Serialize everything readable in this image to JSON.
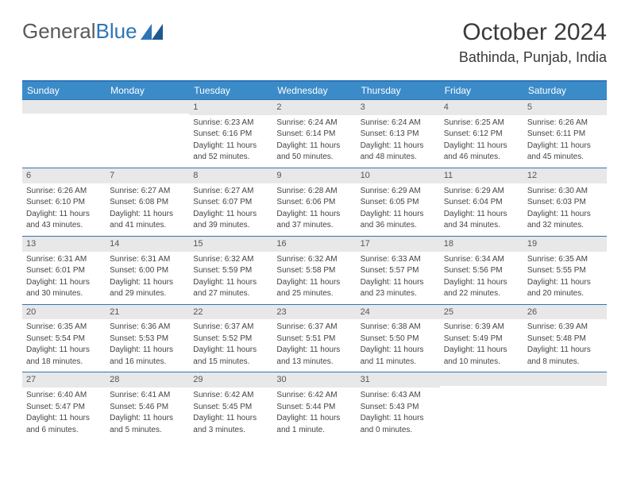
{
  "logo": {
    "text1": "General",
    "text2": "Blue"
  },
  "title": "October 2024",
  "location": "Bathinda, Punjab, India",
  "colors": {
    "header_bg": "#3b8bc9",
    "border": "#2e75b6",
    "daynum_bg": "#e8e8e8",
    "text": "#444444"
  },
  "day_names": [
    "Sunday",
    "Monday",
    "Tuesday",
    "Wednesday",
    "Thursday",
    "Friday",
    "Saturday"
  ],
  "weeks": [
    [
      null,
      null,
      {
        "n": "1",
        "sr": "Sunrise: 6:23 AM",
        "ss": "Sunset: 6:16 PM",
        "dl1": "Daylight: 11 hours",
        "dl2": "and 52 minutes."
      },
      {
        "n": "2",
        "sr": "Sunrise: 6:24 AM",
        "ss": "Sunset: 6:14 PM",
        "dl1": "Daylight: 11 hours",
        "dl2": "and 50 minutes."
      },
      {
        "n": "3",
        "sr": "Sunrise: 6:24 AM",
        "ss": "Sunset: 6:13 PM",
        "dl1": "Daylight: 11 hours",
        "dl2": "and 48 minutes."
      },
      {
        "n": "4",
        "sr": "Sunrise: 6:25 AM",
        "ss": "Sunset: 6:12 PM",
        "dl1": "Daylight: 11 hours",
        "dl2": "and 46 minutes."
      },
      {
        "n": "5",
        "sr": "Sunrise: 6:26 AM",
        "ss": "Sunset: 6:11 PM",
        "dl1": "Daylight: 11 hours",
        "dl2": "and 45 minutes."
      }
    ],
    [
      {
        "n": "6",
        "sr": "Sunrise: 6:26 AM",
        "ss": "Sunset: 6:10 PM",
        "dl1": "Daylight: 11 hours",
        "dl2": "and 43 minutes."
      },
      {
        "n": "7",
        "sr": "Sunrise: 6:27 AM",
        "ss": "Sunset: 6:08 PM",
        "dl1": "Daylight: 11 hours",
        "dl2": "and 41 minutes."
      },
      {
        "n": "8",
        "sr": "Sunrise: 6:27 AM",
        "ss": "Sunset: 6:07 PM",
        "dl1": "Daylight: 11 hours",
        "dl2": "and 39 minutes."
      },
      {
        "n": "9",
        "sr": "Sunrise: 6:28 AM",
        "ss": "Sunset: 6:06 PM",
        "dl1": "Daylight: 11 hours",
        "dl2": "and 37 minutes."
      },
      {
        "n": "10",
        "sr": "Sunrise: 6:29 AM",
        "ss": "Sunset: 6:05 PM",
        "dl1": "Daylight: 11 hours",
        "dl2": "and 36 minutes."
      },
      {
        "n": "11",
        "sr": "Sunrise: 6:29 AM",
        "ss": "Sunset: 6:04 PM",
        "dl1": "Daylight: 11 hours",
        "dl2": "and 34 minutes."
      },
      {
        "n": "12",
        "sr": "Sunrise: 6:30 AM",
        "ss": "Sunset: 6:03 PM",
        "dl1": "Daylight: 11 hours",
        "dl2": "and 32 minutes."
      }
    ],
    [
      {
        "n": "13",
        "sr": "Sunrise: 6:31 AM",
        "ss": "Sunset: 6:01 PM",
        "dl1": "Daylight: 11 hours",
        "dl2": "and 30 minutes."
      },
      {
        "n": "14",
        "sr": "Sunrise: 6:31 AM",
        "ss": "Sunset: 6:00 PM",
        "dl1": "Daylight: 11 hours",
        "dl2": "and 29 minutes."
      },
      {
        "n": "15",
        "sr": "Sunrise: 6:32 AM",
        "ss": "Sunset: 5:59 PM",
        "dl1": "Daylight: 11 hours",
        "dl2": "and 27 minutes."
      },
      {
        "n": "16",
        "sr": "Sunrise: 6:32 AM",
        "ss": "Sunset: 5:58 PM",
        "dl1": "Daylight: 11 hours",
        "dl2": "and 25 minutes."
      },
      {
        "n": "17",
        "sr": "Sunrise: 6:33 AM",
        "ss": "Sunset: 5:57 PM",
        "dl1": "Daylight: 11 hours",
        "dl2": "and 23 minutes."
      },
      {
        "n": "18",
        "sr": "Sunrise: 6:34 AM",
        "ss": "Sunset: 5:56 PM",
        "dl1": "Daylight: 11 hours",
        "dl2": "and 22 minutes."
      },
      {
        "n": "19",
        "sr": "Sunrise: 6:35 AM",
        "ss": "Sunset: 5:55 PM",
        "dl1": "Daylight: 11 hours",
        "dl2": "and 20 minutes."
      }
    ],
    [
      {
        "n": "20",
        "sr": "Sunrise: 6:35 AM",
        "ss": "Sunset: 5:54 PM",
        "dl1": "Daylight: 11 hours",
        "dl2": "and 18 minutes."
      },
      {
        "n": "21",
        "sr": "Sunrise: 6:36 AM",
        "ss": "Sunset: 5:53 PM",
        "dl1": "Daylight: 11 hours",
        "dl2": "and 16 minutes."
      },
      {
        "n": "22",
        "sr": "Sunrise: 6:37 AM",
        "ss": "Sunset: 5:52 PM",
        "dl1": "Daylight: 11 hours",
        "dl2": "and 15 minutes."
      },
      {
        "n": "23",
        "sr": "Sunrise: 6:37 AM",
        "ss": "Sunset: 5:51 PM",
        "dl1": "Daylight: 11 hours",
        "dl2": "and 13 minutes."
      },
      {
        "n": "24",
        "sr": "Sunrise: 6:38 AM",
        "ss": "Sunset: 5:50 PM",
        "dl1": "Daylight: 11 hours",
        "dl2": "and 11 minutes."
      },
      {
        "n": "25",
        "sr": "Sunrise: 6:39 AM",
        "ss": "Sunset: 5:49 PM",
        "dl1": "Daylight: 11 hours",
        "dl2": "and 10 minutes."
      },
      {
        "n": "26",
        "sr": "Sunrise: 6:39 AM",
        "ss": "Sunset: 5:48 PM",
        "dl1": "Daylight: 11 hours",
        "dl2": "and 8 minutes."
      }
    ],
    [
      {
        "n": "27",
        "sr": "Sunrise: 6:40 AM",
        "ss": "Sunset: 5:47 PM",
        "dl1": "Daylight: 11 hours",
        "dl2": "and 6 minutes."
      },
      {
        "n": "28",
        "sr": "Sunrise: 6:41 AM",
        "ss": "Sunset: 5:46 PM",
        "dl1": "Daylight: 11 hours",
        "dl2": "and 5 minutes."
      },
      {
        "n": "29",
        "sr": "Sunrise: 6:42 AM",
        "ss": "Sunset: 5:45 PM",
        "dl1": "Daylight: 11 hours",
        "dl2": "and 3 minutes."
      },
      {
        "n": "30",
        "sr": "Sunrise: 6:42 AM",
        "ss": "Sunset: 5:44 PM",
        "dl1": "Daylight: 11 hours",
        "dl2": "and 1 minute."
      },
      {
        "n": "31",
        "sr": "Sunrise: 6:43 AM",
        "ss": "Sunset: 5:43 PM",
        "dl1": "Daylight: 11 hours",
        "dl2": "and 0 minutes."
      },
      null,
      null
    ]
  ]
}
